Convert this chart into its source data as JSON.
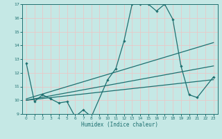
{
  "xlabel": "Humidex (Indice chaleur)",
  "xlim": [
    -0.5,
    23.5
  ],
  "ylim": [
    9,
    17
  ],
  "yticks": [
    9,
    10,
    11,
    12,
    13,
    14,
    15,
    16,
    17
  ],
  "xticks": [
    0,
    1,
    2,
    3,
    4,
    5,
    6,
    7,
    8,
    9,
    10,
    11,
    12,
    13,
    14,
    15,
    16,
    17,
    18,
    19,
    20,
    21,
    22,
    23
  ],
  "bg_color": "#c5e8e5",
  "grid_color": "#e8c8c8",
  "line_color": "#1e7070",
  "main_line": {
    "x": [
      0,
      1,
      2,
      3,
      4,
      5,
      6,
      7,
      8,
      10,
      11,
      12,
      13,
      14,
      15,
      16,
      17,
      18,
      19,
      20,
      21,
      23
    ],
    "y": [
      12.7,
      9.9,
      10.4,
      10.1,
      9.8,
      9.9,
      8.8,
      9.3,
      8.8,
      11.5,
      12.3,
      14.3,
      17.0,
      17.0,
      17.0,
      16.5,
      17.0,
      15.9,
      12.5,
      10.4,
      10.2,
      11.7
    ]
  },
  "trend_lines": [
    {
      "x": [
        0,
        23
      ],
      "y": [
        10.1,
        14.2
      ]
    },
    {
      "x": [
        0,
        23
      ],
      "y": [
        10.0,
        12.5
      ]
    },
    {
      "x": [
        0,
        23
      ],
      "y": [
        10.0,
        11.5
      ]
    }
  ]
}
